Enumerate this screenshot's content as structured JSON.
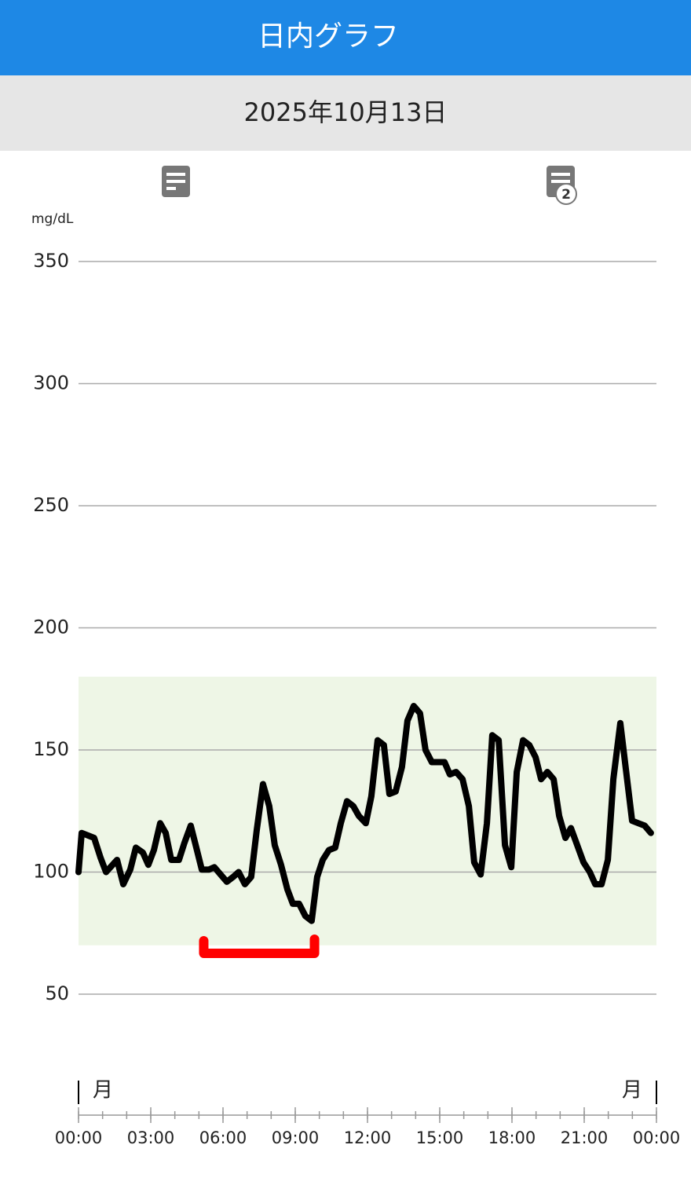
{
  "header": {
    "title": "日内グラフ"
  },
  "date": "2025年10月13日",
  "note_badge": "2",
  "chart_data": {
    "type": "line",
    "y_unit": "mg/dL",
    "x": [
      0,
      0.13,
      0.65,
      0.91,
      1.14,
      1.6,
      1.86,
      2.15,
      2.38,
      2.67,
      2.9,
      3.13,
      3.39,
      3.62,
      3.85,
      4.17,
      4.4,
      4.66,
      4.89,
      5.12,
      5.41,
      5.64,
      5.9,
      6.16,
      6.42,
      6.65,
      6.91,
      7.17,
      7.4,
      7.66,
      7.92,
      8.15,
      8.41,
      8.67,
      8.9,
      9.16,
      9.42,
      9.68,
      9.91,
      10.14,
      10.4,
      10.66,
      10.89,
      11.15,
      11.41,
      11.64,
      11.93,
      12.16,
      12.42,
      12.68,
      12.91,
      13.17,
      13.43,
      13.66,
      13.92,
      14.18,
      14.41,
      14.67,
      14.9,
      15.2,
      15.42,
      15.68,
      15.95,
      16.21,
      16.43,
      16.7,
      16.96,
      17.18,
      17.45,
      17.71,
      17.97,
      18.2,
      18.46,
      18.72,
      18.98,
      19.21,
      19.47,
      19.73,
      19.96,
      20.22,
      20.45,
      20.71,
      20.97,
      21.23,
      21.46,
      21.72,
      21.98,
      22.21,
      22.5,
      22.73,
      22.99,
      23.25,
      23.51,
      23.77
    ],
    "values": [
      100,
      116,
      114,
      106,
      100,
      105,
      95,
      101,
      110,
      108,
      103,
      109,
      120,
      116,
      105,
      105,
      112,
      119,
      110,
      101,
      101,
      102,
      99,
      96,
      98,
      100,
      95,
      98,
      117,
      136,
      127,
      111,
      103,
      93,
      87,
      87,
      82,
      80,
      98,
      105,
      109,
      110,
      120,
      129,
      127,
      123,
      120,
      131,
      154,
      152,
      132,
      133,
      143,
      162,
      168,
      165,
      150,
      145,
      145,
      145,
      140,
      141,
      138,
      127,
      104,
      99,
      120,
      156,
      154,
      111,
      102,
      141,
      154,
      152,
      147,
      138,
      141,
      138,
      123,
      114,
      118,
      111,
      104,
      100,
      95,
      95,
      105,
      138,
      161,
      142,
      121,
      120,
      119,
      116
    ],
    "color": "#000000",
    "ylim": [
      50,
      350
    ],
    "yticks": [
      50,
      100,
      150,
      200,
      250,
      300,
      350
    ],
    "grid": true,
    "xlim": [
      0,
      24
    ],
    "xticks": [
      {
        "value": 0,
        "label": "00:00"
      },
      {
        "value": 3,
        "label": "03:00"
      },
      {
        "value": 6,
        "label": "06:00"
      },
      {
        "value": 9,
        "label": "09:00"
      },
      {
        "value": 12,
        "label": "12:00"
      },
      {
        "value": 15,
        "label": "15:00"
      },
      {
        "value": 18,
        "label": "18:00"
      },
      {
        "value": 21,
        "label": "21:00"
      },
      {
        "value": 24,
        "label": "00:00"
      }
    ],
    "xminorticks": [
      0,
      1,
      2,
      3,
      4,
      5,
      6,
      7,
      8,
      9,
      10,
      11,
      12,
      13,
      14,
      15,
      16,
      17,
      18,
      19,
      20,
      21,
      22,
      23,
      24
    ],
    "day_labels": [
      "月",
      "月"
    ],
    "target_range": [
      70,
      180
    ],
    "target_color": "#eef6e6",
    "highlight": {
      "x": [
        5.2,
        9.8
      ],
      "color": "#ff0000"
    }
  }
}
